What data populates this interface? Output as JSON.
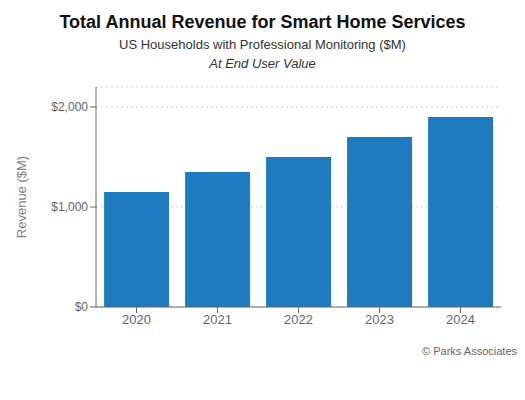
{
  "chart_data": {
    "type": "bar",
    "title": "Total Annual Revenue for Smart Home Services",
    "subtitle": [
      "US Households with Professional Monitoring ($M)",
      "At End User Value"
    ],
    "annotations": [
      "© Parks Associates"
    ],
    "categories": [
      "2020",
      "2021",
      "2022",
      "2023",
      "2024"
    ],
    "values": [
      1150,
      1350,
      1500,
      1700,
      1900
    ],
    "color": "#1f7bbf",
    "ylabel": "Revenue ($M)",
    "ylim": [
      0,
      2200
    ],
    "yticks": [
      {
        "value": 0,
        "label": "$0"
      },
      {
        "value": 1000,
        "label": "$1,000"
      },
      {
        "value": 2000,
        "label": "$2,000"
      }
    ],
    "grid": true
  }
}
